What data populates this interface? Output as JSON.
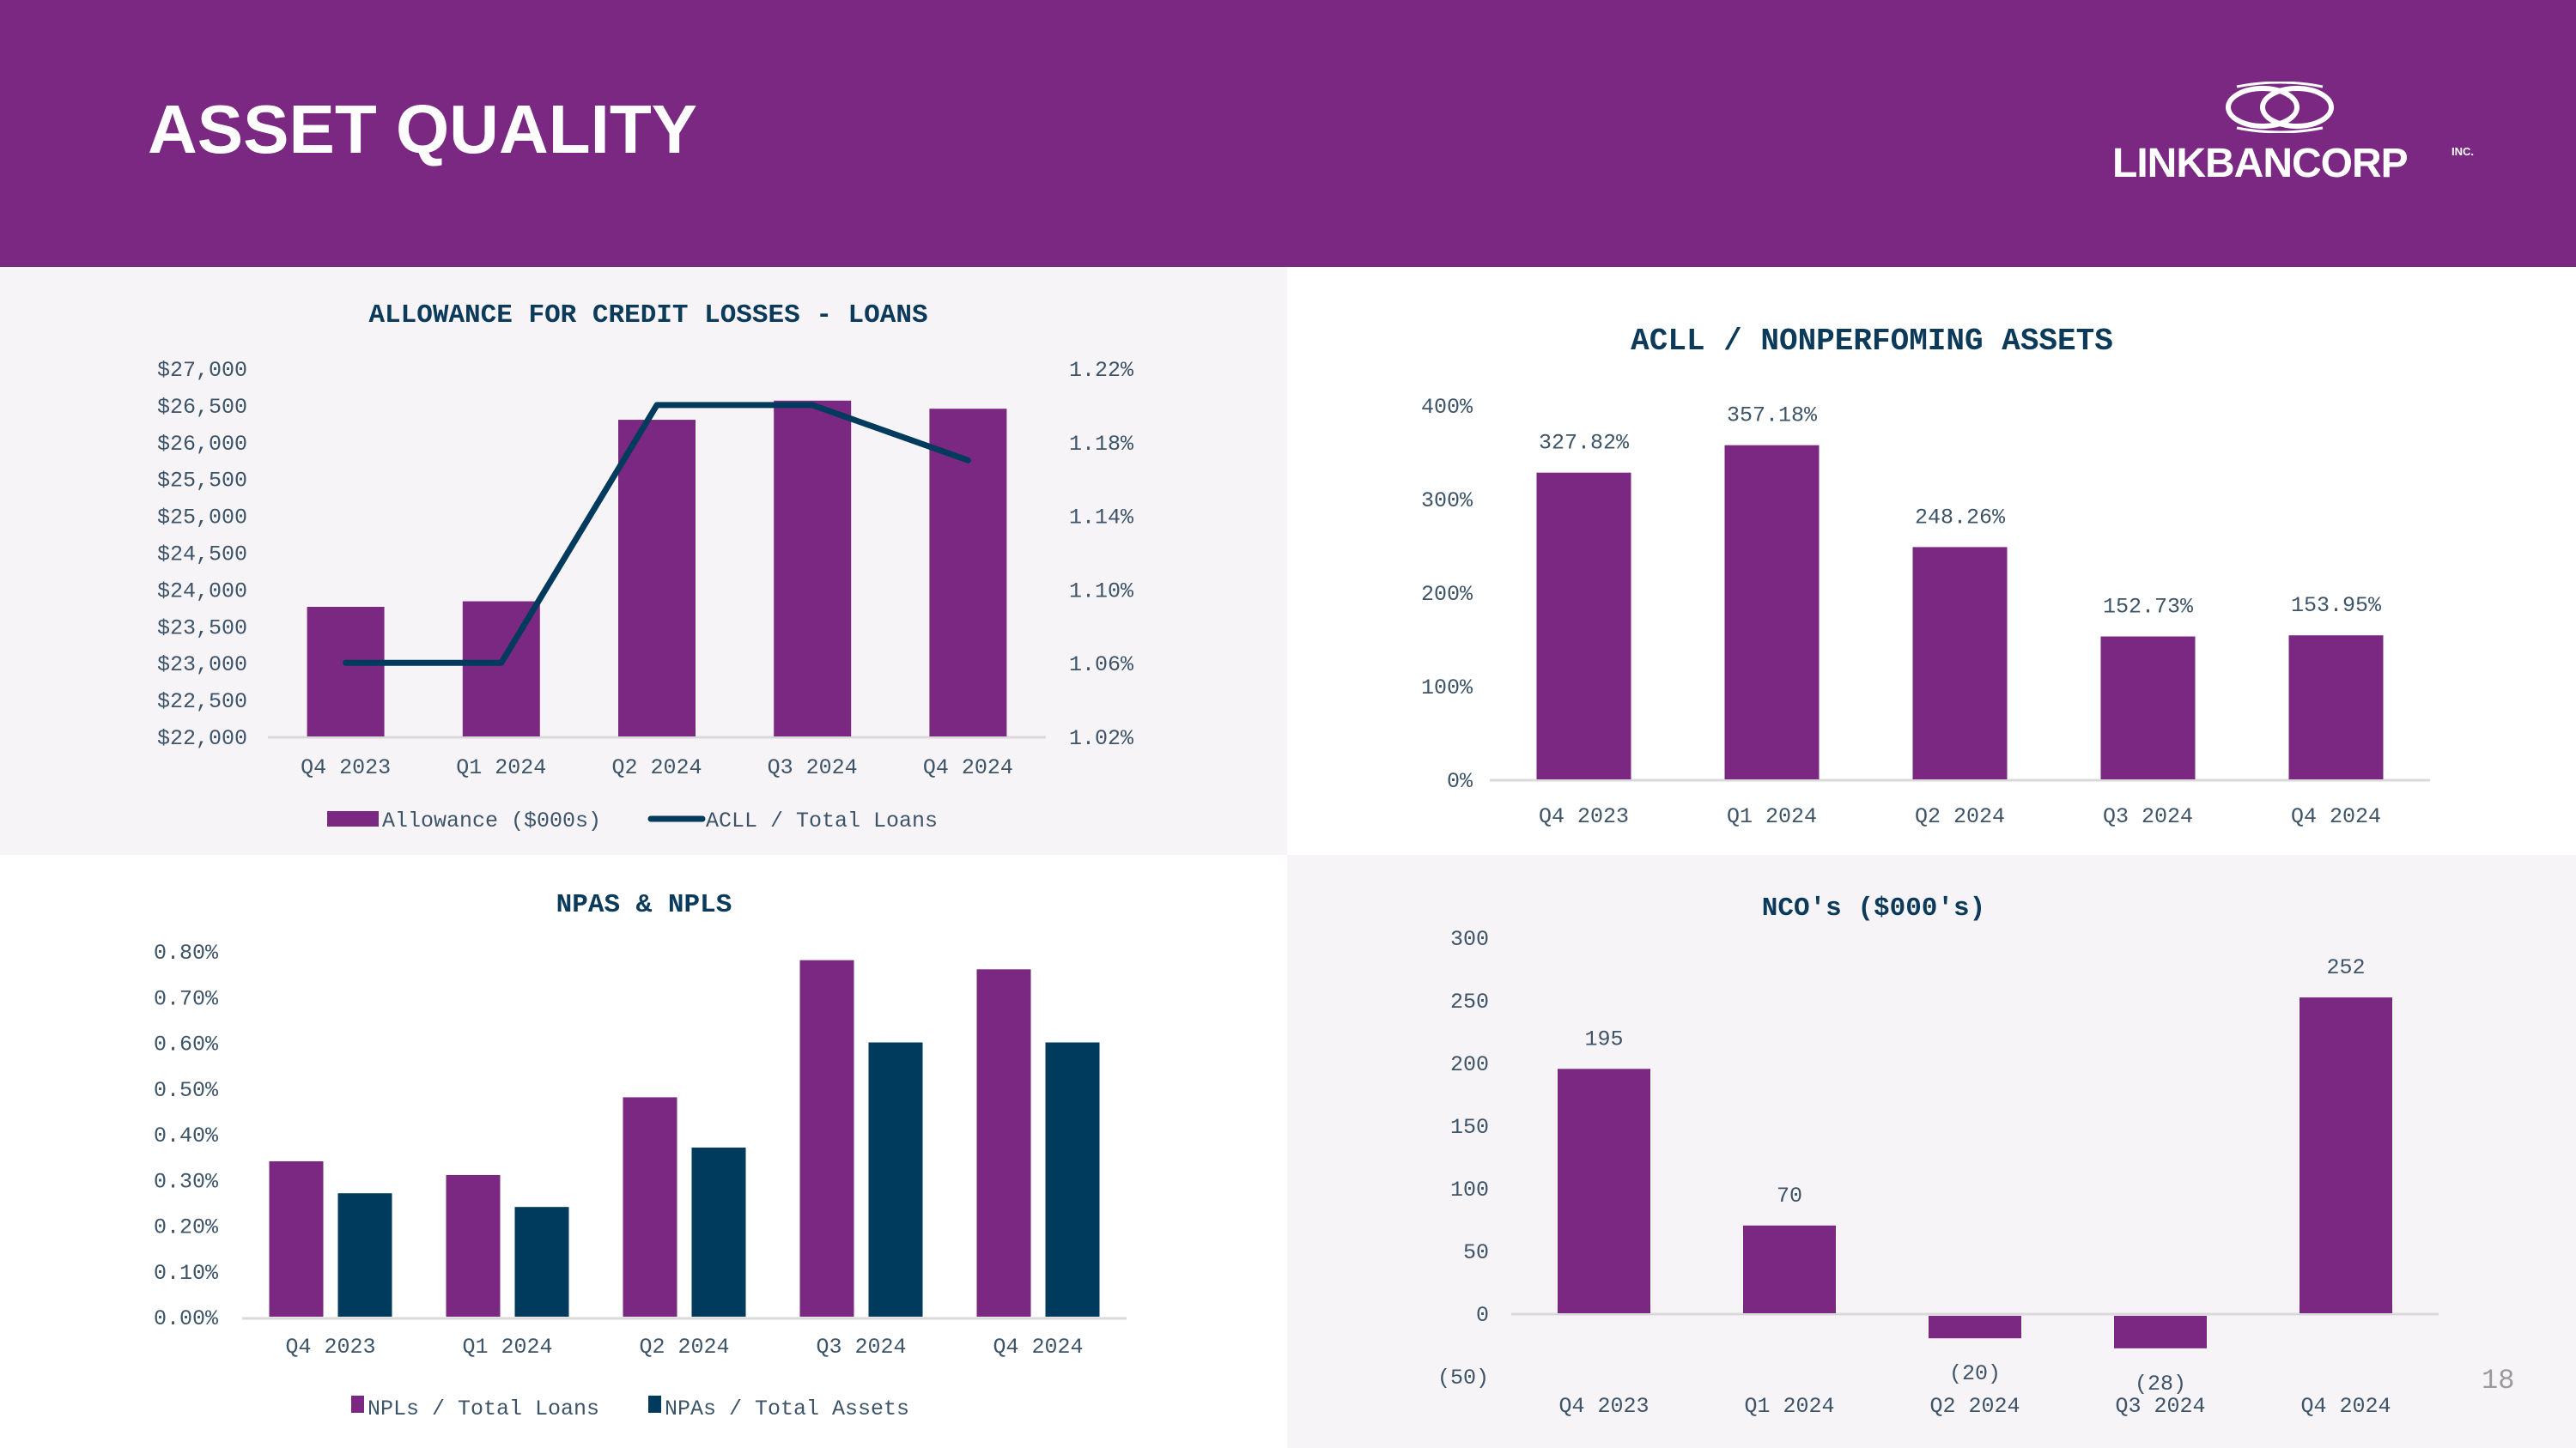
{
  "header": {
    "title": "ASSET QUALITY",
    "logo_text": "LINKBANCORP",
    "logo_suffix": "INC.",
    "logo_icon": "interlocking-rings-icon"
  },
  "colors": {
    "brand_purple": "#7a2882",
    "navy": "#003a5c",
    "panel_gray": "#f6f4f7",
    "axis_text": "#3d5468"
  },
  "page_number": "18",
  "chart_data": [
    {
      "id": "allowance",
      "type": "bar+line",
      "title": "ALLOWANCE FOR CREDIT LOSSES - LOANS",
      "categories": [
        "Q4 2023",
        "Q1 2024",
        "Q2 2024",
        "Q3 2024",
        "Q4 2024"
      ],
      "series": [
        {
          "name": "Allowance ($000s)",
          "type": "bar",
          "axis": "left",
          "values": [
            23760,
            23835,
            26300,
            26560,
            26450
          ]
        },
        {
          "name": "ACLL / Total Loans",
          "type": "line",
          "axis": "right",
          "values": [
            1.06,
            1.06,
            1.2,
            1.2,
            1.17
          ]
        }
      ],
      "y_left": {
        "min": 22000,
        "max": 27000,
        "ticks": [
          "$22,000",
          "$22,500",
          "$23,000",
          "$23,500",
          "$24,000",
          "$24,500",
          "$25,000",
          "$25,500",
          "$26,000",
          "$26,500",
          "$27,000"
        ]
      },
      "y_right": {
        "min": 1.02,
        "max": 1.22,
        "ticks": [
          "1.02%",
          "1.06%",
          "1.10%",
          "1.14%",
          "1.18%",
          "1.22%"
        ]
      },
      "legend": "bottom",
      "grid": false
    },
    {
      "id": "acll_npa",
      "type": "bar",
      "title": "ACLL / NONPERFOMING ASSETS",
      "categories": [
        "Q4 2023",
        "Q1 2024",
        "Q2 2024",
        "Q3 2024",
        "Q4 2024"
      ],
      "values": [
        327.82,
        357.18,
        248.26,
        152.73,
        153.95
      ],
      "data_labels": [
        "327.82%",
        "357.18%",
        "248.26%",
        "152.73%",
        "153.95%"
      ],
      "ylim": [
        0,
        400
      ],
      "y_ticks": [
        "0%",
        "100%",
        "200%",
        "300%",
        "400%"
      ],
      "grid": false
    },
    {
      "id": "npas_npls",
      "type": "bar",
      "title": "NPAS & NPLS",
      "categories": [
        "Q4 2023",
        "Q1 2024",
        "Q2 2024",
        "Q3 2024",
        "Q4 2024"
      ],
      "series": [
        {
          "name": "NPLs / Total Loans",
          "values": [
            0.34,
            0.31,
            0.48,
            0.78,
            0.76
          ]
        },
        {
          "name": "NPAs / Total Assets",
          "values": [
            0.27,
            0.24,
            0.37,
            0.6,
            0.6
          ]
        }
      ],
      "ylim": [
        0,
        0.8
      ],
      "y_ticks": [
        "0.00%",
        "0.10%",
        "0.20%",
        "0.30%",
        "0.40%",
        "0.50%",
        "0.60%",
        "0.70%",
        "0.80%"
      ],
      "legend": "bottom",
      "grid": false
    },
    {
      "id": "ncos",
      "type": "bar",
      "title": "NCO's  ($000's)",
      "categories": [
        "Q4 2023",
        "Q1 2024",
        "Q2 2024",
        "Q3 2024",
        "Q4 2024"
      ],
      "values": [
        195,
        70,
        -20,
        -28,
        252
      ],
      "data_labels": [
        "195",
        "70",
        "(20)",
        "(28)",
        "252"
      ],
      "ylim": [
        -50,
        300
      ],
      "y_ticks": [
        "(50)",
        "0",
        "50",
        "100",
        "150",
        "200",
        "250",
        "300"
      ],
      "grid": false
    }
  ]
}
